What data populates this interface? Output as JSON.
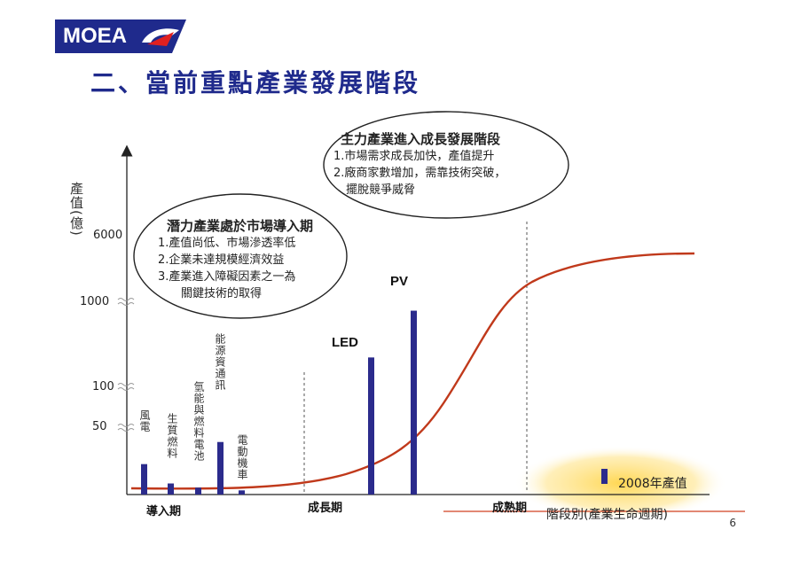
{
  "logo": {
    "text": "MOEA"
  },
  "title": "二、當前重點產業發展階段",
  "bubble_main": {
    "heading": "主力產業進入成長發展階段",
    "lines": [
      "1.市場需求成長加快，產值提升",
      "2.廠商家數增加，需靠技術突破，",
      "擺脫競爭威脅"
    ]
  },
  "bubble_potential": {
    "heading": "潛力產業處於市場導入期",
    "lines": [
      "1.產值尚低、市場滲透率低",
      "2.企業未達規模經濟效益",
      "3.產業進入障礙因素之一為",
      "關鍵技術的取得"
    ]
  },
  "y_axis": {
    "label": "產值(億)",
    "ticks": [
      "6000",
      "1000",
      "100",
      "50"
    ]
  },
  "x_axis": {
    "label": "階段別(產業生命週期)"
  },
  "stages": [
    "導入期",
    "成長期",
    "成熟期"
  ],
  "annotation_2008": "2008年產值",
  "page_number": "6",
  "colors": {
    "title": "#1f2a8c",
    "bar": "#2b2b8c",
    "curve": "#c0391b",
    "logo": "#1f2a8c",
    "logo_accent": "#e02020"
  },
  "chart_data": {
    "type": "bar",
    "categories": [
      "風電",
      "生質燃料",
      "氫能與燃料電池",
      "能源資通訊",
      "電動機車",
      "LED",
      "PV"
    ],
    "values": [
      22,
      8,
      5,
      38,
      3,
      400,
      900
    ],
    "yticks": [
      50,
      100,
      1000,
      6000
    ],
    "scale": "broken-axis",
    "curve": "S-shaped industry life-cycle curve"
  }
}
